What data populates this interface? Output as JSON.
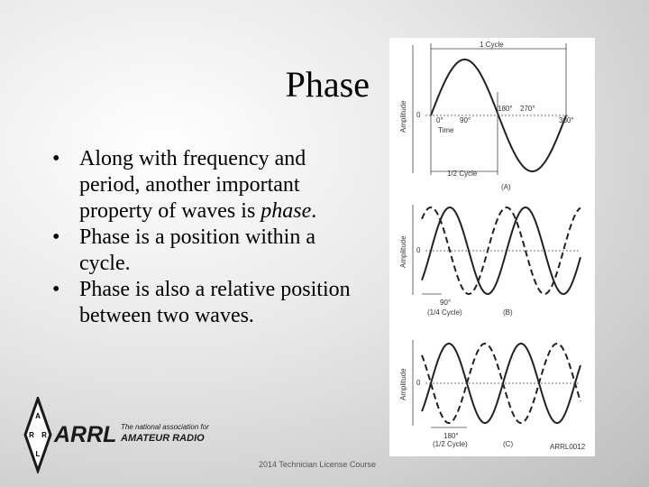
{
  "title": "Phase",
  "bullets": [
    [
      "Along with frequency and period, another important property of waves is ",
      "phase",
      "."
    ],
    [
      "Phase is a position within a cycle."
    ],
    [
      "Phase is also a relative position between two waves."
    ]
  ],
  "figure": {
    "a": {
      "cycle": "1 Cycle",
      "axis": "Amplitude",
      "zero": "0",
      "d0": "0°",
      "d90": "90°",
      "d180": "180°",
      "d270": "270°",
      "d360": "360°",
      "time": "Time",
      "half": "1/2 Cycle",
      "tag": "(A)"
    },
    "b": {
      "axis": "Amplitude",
      "zero": "0",
      "deg": "90°",
      "frac": "(1/4 Cycle)",
      "tag": "(B)"
    },
    "c": {
      "axis": "Amplitude",
      "zero": "0",
      "deg": "180°",
      "frac": "(1/2 Cycle)",
      "tag": "(C)"
    },
    "code": "ARRL0012"
  },
  "logo": {
    "letters": [
      "A",
      "R",
      "R",
      "L"
    ],
    "name": "ARRL",
    "tagline": "The national association for",
    "org": "AMATEUR RADIO"
  },
  "footer": "2014 Technician License Course"
}
